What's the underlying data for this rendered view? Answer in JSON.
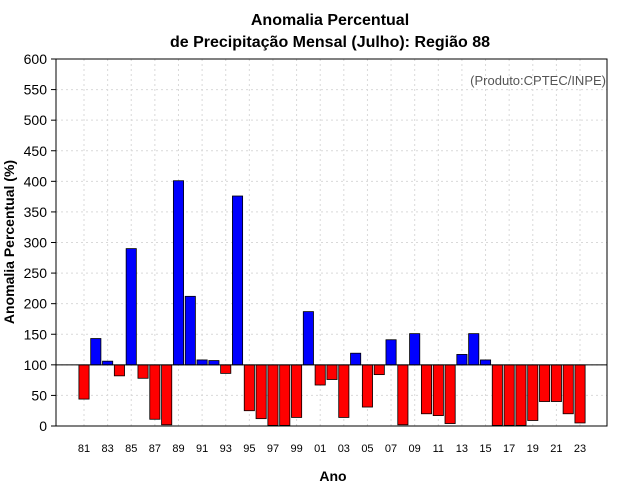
{
  "chart_data": {
    "type": "bar",
    "title_line1": "Anomalia Percentual",
    "title_line2": "de Precipitação Mensal (Julho): Região 88",
    "xlabel": "Ano",
    "ylabel": "Anomalia Percentual (%)",
    "credit": "(Produto:CPTEC/INPE)",
    "baseline": 100,
    "ylim": [
      0,
      600
    ],
    "yticks": [
      0,
      50,
      100,
      150,
      200,
      250,
      300,
      350,
      400,
      450,
      500,
      550,
      600
    ],
    "grid": true,
    "colors": {
      "above": "#0000ff",
      "below": "#ff0000",
      "frame": "#000000",
      "grid": "#d9d9d9"
    },
    "categories": [
      "81",
      "82",
      "83",
      "84",
      "85",
      "86",
      "87",
      "88",
      "89",
      "90",
      "91",
      "92",
      "93",
      "94",
      "95",
      "96",
      "97",
      "98",
      "99",
      "00",
      "01",
      "02",
      "03",
      "04",
      "05",
      "06",
      "07",
      "08",
      "09",
      "10",
      "11",
      "12",
      "13",
      "14",
      "15",
      "16",
      "17",
      "18",
      "19",
      "20",
      "21",
      "22",
      "23"
    ],
    "xtick_labels": [
      "81",
      "83",
      "85",
      "87",
      "89",
      "91",
      "93",
      "95",
      "97",
      "99",
      "01",
      "03",
      "05",
      "07",
      "09",
      "11",
      "13",
      "15",
      "17",
      "19",
      "21",
      "23"
    ],
    "values": [
      44,
      143,
      106,
      82,
      290,
      78,
      11,
      2,
      401,
      212,
      108,
      107,
      86,
      376,
      25,
      12,
      1,
      1,
      14,
      187,
      67,
      76,
      14,
      119,
      31,
      84,
      141,
      2,
      151,
      20,
      17,
      4,
      117,
      151,
      108,
      1,
      1,
      1,
      9,
      40,
      40,
      20,
      5
    ]
  }
}
